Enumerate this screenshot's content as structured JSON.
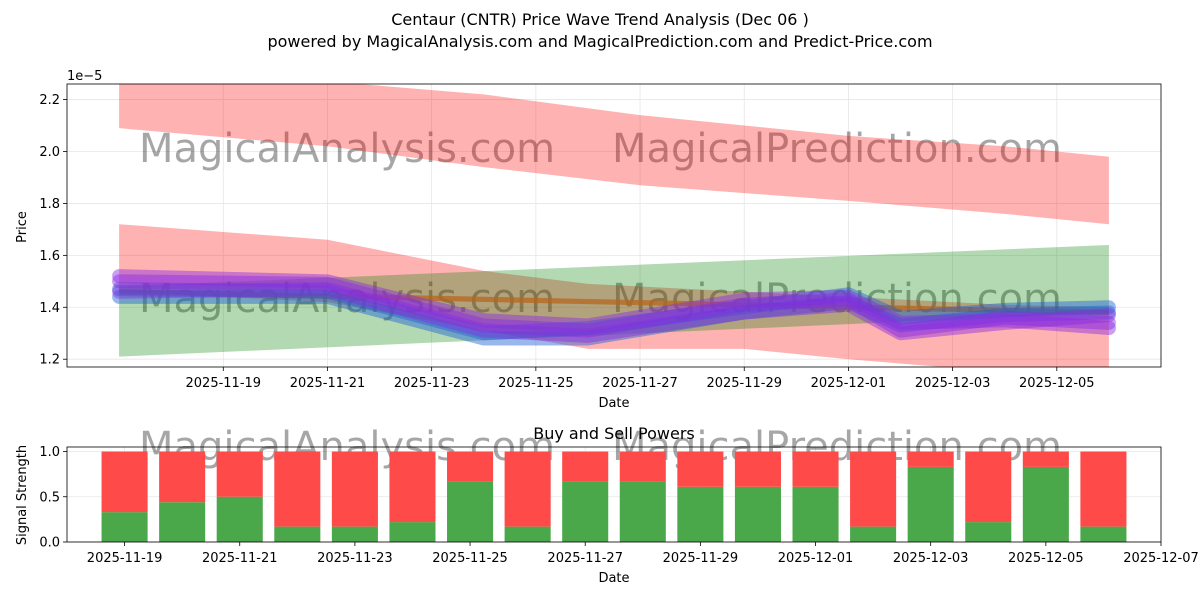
{
  "title_line1": "Centaur (CNTR) Price Wave Trend Analysis (Dec 06 )",
  "title_line2": "powered by MagicalAnalysis.com and MagicalPrediction.com and Predict-Price.com",
  "watermarks": [
    "MagicalAnalysis.com",
    "MagicalPrediction.com"
  ],
  "colors": {
    "red_band": "#ff0000",
    "green_band": "#008000",
    "brown_band": "#b5651d",
    "blue_wave": "#1f5fd6",
    "purple_wave": "#8a2be2",
    "buy": "#4aa84a",
    "sell": "#ff4a4a"
  },
  "chart_data": [
    {
      "type": "area",
      "title": "",
      "xlabel": "Date",
      "ylabel": "Price",
      "exponent_label": "1e−5",
      "xlim": [
        "2025-11-16",
        "2025-12-07"
      ],
      "ylim": [
        1.17,
        2.26
      ],
      "xticks": [
        "2025-11-19",
        "2025-11-21",
        "2025-11-23",
        "2025-11-25",
        "2025-11-27",
        "2025-11-29",
        "2025-12-01",
        "2025-12-03",
        "2025-12-05"
      ],
      "yticks": [
        "1.2",
        "1.4",
        "1.6",
        "1.8",
        "2.0",
        "2.2"
      ],
      "bands": [
        {
          "name": "upper-red",
          "color": "red",
          "x": [
            "2025-11-17",
            "2025-11-21",
            "2025-11-24",
            "2025-11-27",
            "2025-12-01",
            "2025-12-04",
            "2025-12-06"
          ],
          "upper": [
            2.29,
            2.27,
            2.22,
            2.14,
            2.06,
            2.02,
            1.98
          ],
          "lower": [
            2.09,
            2.02,
            1.94,
            1.87,
            1.81,
            1.76,
            1.72
          ]
        },
        {
          "name": "lower-red",
          "color": "red",
          "x": [
            "2025-11-17",
            "2025-11-21",
            "2025-11-24",
            "2025-11-26",
            "2025-11-29",
            "2025-12-01",
            "2025-12-04",
            "2025-12-06"
          ],
          "upper": [
            1.72,
            1.66,
            1.54,
            1.49,
            1.46,
            1.44,
            1.41,
            1.4
          ],
          "lower": [
            1.46,
            1.42,
            1.31,
            1.24,
            1.24,
            1.2,
            1.15,
            1.12
          ]
        },
        {
          "name": "green",
          "color": "green",
          "x": [
            "2025-11-17",
            "2025-12-06"
          ],
          "upper": [
            1.48,
            1.64
          ],
          "lower": [
            1.21,
            1.38
          ]
        },
        {
          "name": "brown",
          "color": "brown",
          "x": [
            "2025-11-17",
            "2025-12-06"
          ],
          "upper": [
            1.47,
            1.39
          ],
          "lower": [
            1.45,
            1.37
          ]
        }
      ],
      "series": [
        {
          "name": "blue-wave-1",
          "color": "blue",
          "x": [
            "2025-11-17",
            "2025-11-21",
            "2025-11-24",
            "2025-11-26",
            "2025-11-29",
            "2025-12-01",
            "2025-12-02",
            "2025-12-04",
            "2025-12-06"
          ],
          "values": [
            1.44,
            1.44,
            1.28,
            1.28,
            1.38,
            1.42,
            1.33,
            1.37,
            1.38
          ]
        },
        {
          "name": "blue-wave-2",
          "color": "blue",
          "x": [
            "2025-11-17",
            "2025-11-21",
            "2025-11-24",
            "2025-11-26",
            "2025-11-29",
            "2025-12-01",
            "2025-12-02",
            "2025-12-04",
            "2025-12-06"
          ],
          "values": [
            1.47,
            1.46,
            1.3,
            1.32,
            1.4,
            1.45,
            1.36,
            1.39,
            1.4
          ]
        },
        {
          "name": "purple-wave-1",
          "color": "purple",
          "x": [
            "2025-11-17",
            "2025-11-21",
            "2025-11-24",
            "2025-11-26",
            "2025-11-29",
            "2025-12-01",
            "2025-12-02",
            "2025-12-04",
            "2025-12-06"
          ],
          "values": [
            1.5,
            1.49,
            1.33,
            1.31,
            1.41,
            1.43,
            1.31,
            1.36,
            1.34
          ]
        },
        {
          "name": "purple-wave-2",
          "color": "purple",
          "x": [
            "2025-11-17",
            "2025-11-21",
            "2025-11-24",
            "2025-11-26",
            "2025-11-29",
            "2025-12-01",
            "2025-12-02",
            "2025-12-04",
            "2025-12-06"
          ],
          "values": [
            1.46,
            1.47,
            1.31,
            1.29,
            1.38,
            1.41,
            1.3,
            1.34,
            1.37
          ]
        },
        {
          "name": "purple-wave-3",
          "color": "purple",
          "x": [
            "2025-11-17",
            "2025-11-21",
            "2025-11-24",
            "2025-11-26",
            "2025-11-29",
            "2025-12-01",
            "2025-12-02",
            "2025-12-04",
            "2025-12-06"
          ],
          "values": [
            1.52,
            1.5,
            1.35,
            1.33,
            1.43,
            1.44,
            1.34,
            1.35,
            1.32
          ]
        }
      ]
    },
    {
      "type": "bar",
      "title": "Buy and Sell Powers",
      "xlabel": "Date",
      "ylabel": "Signal Strength",
      "xlim": [
        "2025-11-18",
        "2025-12-07"
      ],
      "ylim": [
        0,
        1.05
      ],
      "xticks": [
        "2025-11-19",
        "2025-11-21",
        "2025-11-23",
        "2025-11-25",
        "2025-11-27",
        "2025-11-29",
        "2025-12-01",
        "2025-12-03",
        "2025-12-05",
        "2025-12-07"
      ],
      "yticks": [
        "0.0",
        "0.5",
        "1.0"
      ],
      "categories": [
        "2025-11-19",
        "2025-11-20",
        "2025-11-21",
        "2025-11-22",
        "2025-11-23",
        "2025-11-24",
        "2025-11-25",
        "2025-11-26",
        "2025-11-27",
        "2025-11-28",
        "2025-11-29",
        "2025-11-30",
        "2025-12-01",
        "2025-12-02",
        "2025-12-03",
        "2025-12-04",
        "2025-12-05",
        "2025-12-06"
      ],
      "series": [
        {
          "name": "Buy",
          "values": [
            0.33,
            0.44,
            0.5,
            0.17,
            0.17,
            0.22,
            0.67,
            0.17,
            0.67,
            0.67,
            0.61,
            0.61,
            0.61,
            0.17,
            0.83,
            0.22,
            0.83,
            0.17
          ]
        },
        {
          "name": "Sell",
          "values": [
            0.67,
            0.56,
            0.5,
            0.83,
            0.83,
            0.78,
            0.33,
            0.83,
            0.33,
            0.33,
            0.39,
            0.39,
            0.39,
            0.83,
            0.17,
            0.78,
            0.17,
            0.83
          ]
        }
      ]
    }
  ]
}
